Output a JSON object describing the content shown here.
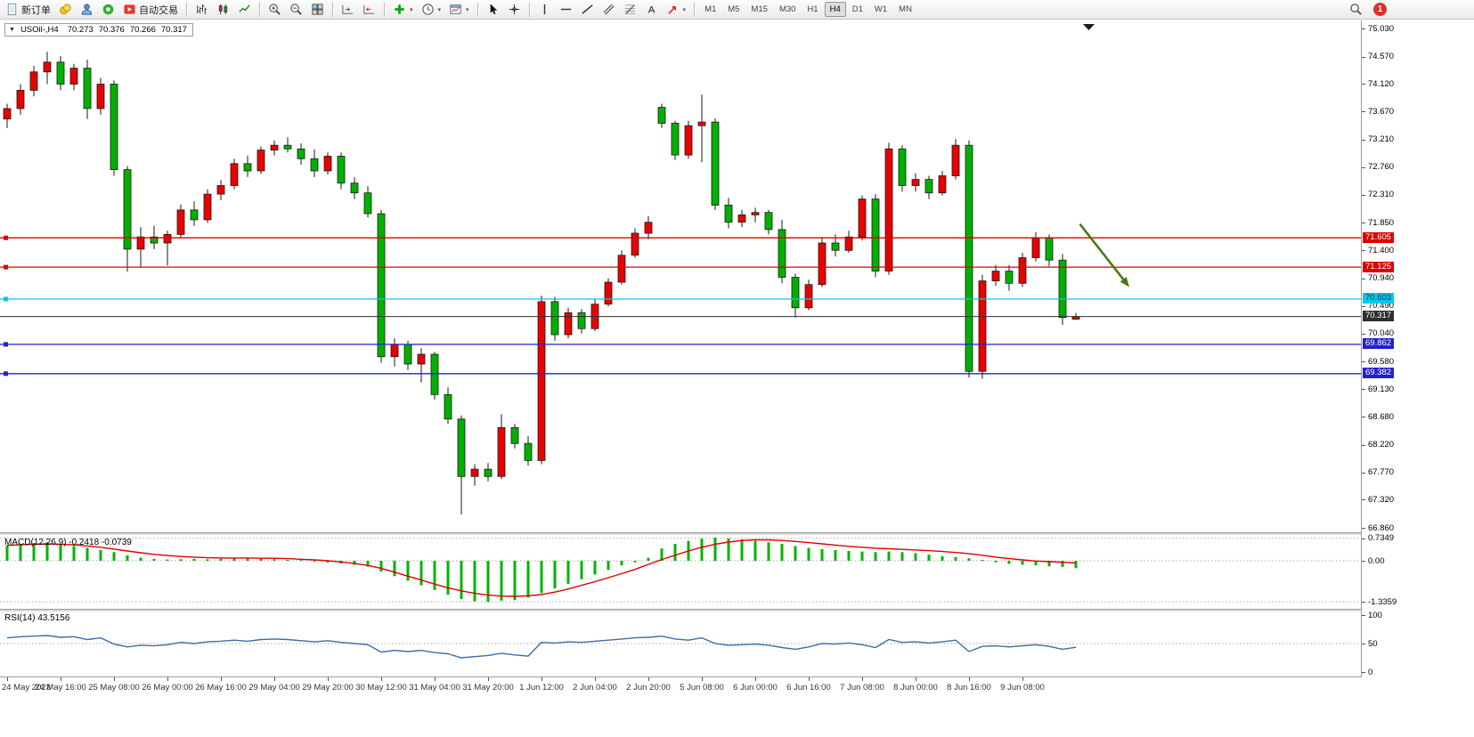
{
  "toolbar": {
    "new_order": "新订单",
    "auto_trading": "自动交易",
    "caret": "▾",
    "text_tool_glyph": "A",
    "timeframes": [
      "M1",
      "M5",
      "M15",
      "M30",
      "H1",
      "H4",
      "D1",
      "W1",
      "MN"
    ],
    "active_timeframe": "H4",
    "notification_count": "1",
    "icons": [
      "new-order",
      "coins",
      "account",
      "community",
      "autotrading",
      "bar-chart-type",
      "candlestick-type",
      "line-chart-type",
      "zoom-in",
      "zoom-out",
      "tile-windows",
      "auto-scroll",
      "chart-shift",
      "add-indicator",
      "periods",
      "templates",
      "cursor",
      "crosshair",
      "vertical-line",
      "horizontal-line",
      "trendline",
      "equidistant-channel",
      "fibonacci-retracement",
      "text-label",
      "arrow-objects",
      "search"
    ]
  },
  "chart": {
    "header": {
      "marker": "▼",
      "symbol_period": "USOil-,H4",
      "open": "70.273",
      "high": "70.376",
      "low": "70.266",
      "close": "70.317"
    },
    "macd_label": "MACD(12,26,9) -0.2418 -0.0739",
    "rsi_label": "RSI(14) 43.5156"
  },
  "chart_data": {
    "type": "candlestick",
    "symbol": "USOil-",
    "period": "H4",
    "ylim": [
      66.86,
      75.03
    ],
    "y_ticks": [
      "75.030",
      "74.570",
      "74.120",
      "73.670",
      "73.210",
      "72.760",
      "72.310",
      "71.850",
      "71.400",
      "70.940",
      "70.490",
      "70.040",
      "69.580",
      "69.130",
      "68.680",
      "68.220",
      "67.770",
      "67.320",
      "66.860"
    ],
    "x_labels": [
      "24 May 2023",
      "24 May 16:00",
      "25 May 08:00",
      "26 May 00:00",
      "26 May 16:00",
      "29 May 04:00",
      "29 May 20:00",
      "30 May 12:00",
      "31 May 04:00",
      "31 May 20:00",
      "1 Jun 12:00",
      "2 Jun 04:00",
      "2 Jun 20:00",
      "5 Jun 08:00",
      "6 Jun 00:00",
      "6 Jun 16:00",
      "7 Jun 08:00",
      "8 Jun 00:00",
      "8 Jun 16:00",
      "9 Jun 08:00"
    ],
    "bars_per_label": 4,
    "bull_color": "#e80202",
    "bear_color": "#02b002",
    "candles": [
      [
        73.55,
        73.8,
        73.4,
        73.72
      ],
      [
        73.72,
        74.12,
        73.62,
        74.02
      ],
      [
        74.02,
        74.42,
        73.92,
        74.32
      ],
      [
        74.32,
        74.65,
        74.12,
        74.48
      ],
      [
        74.48,
        74.58,
        74.02,
        74.12
      ],
      [
        74.12,
        74.45,
        74.02,
        74.38
      ],
      [
        74.38,
        74.52,
        73.55,
        73.72
      ],
      [
        73.72,
        74.22,
        73.62,
        74.12
      ],
      [
        74.12,
        74.18,
        72.62,
        72.72
      ],
      [
        72.72,
        72.78,
        71.05,
        71.42
      ],
      [
        71.42,
        71.78,
        71.12,
        71.62
      ],
      [
        71.62,
        71.8,
        71.42,
        71.52
      ],
      [
        71.52,
        71.72,
        71.15,
        71.66
      ],
      [
        71.66,
        72.15,
        71.6,
        72.06
      ],
      [
        72.06,
        72.2,
        71.8,
        71.9
      ],
      [
        71.9,
        72.4,
        71.85,
        72.32
      ],
      [
        72.32,
        72.55,
        72.22,
        72.46
      ],
      [
        72.46,
        72.9,
        72.4,
        72.82
      ],
      [
        72.82,
        72.95,
        72.6,
        72.7
      ],
      [
        72.7,
        73.1,
        72.65,
        73.04
      ],
      [
        73.04,
        73.2,
        72.95,
        73.12
      ],
      [
        73.12,
        73.25,
        73.0,
        73.06
      ],
      [
        73.06,
        73.15,
        72.8,
        72.9
      ],
      [
        72.9,
        73.05,
        72.6,
        72.7
      ],
      [
        72.7,
        73.0,
        72.64,
        72.94
      ],
      [
        72.94,
        73.0,
        72.4,
        72.5
      ],
      [
        72.5,
        72.6,
        72.24,
        72.34
      ],
      [
        72.34,
        72.45,
        71.94,
        72.0
      ],
      [
        72.0,
        72.06,
        69.56,
        69.66
      ],
      [
        69.66,
        69.96,
        69.5,
        69.86
      ],
      [
        69.86,
        69.92,
        69.44,
        69.54
      ],
      [
        69.54,
        69.8,
        69.24,
        69.7
      ],
      [
        69.7,
        69.74,
        68.96,
        69.04
      ],
      [
        69.04,
        69.16,
        68.56,
        68.64
      ],
      [
        68.64,
        68.7,
        67.08,
        67.7
      ],
      [
        67.7,
        67.9,
        67.55,
        67.82
      ],
      [
        67.82,
        67.92,
        67.62,
        67.7
      ],
      [
        67.7,
        68.72,
        67.66,
        68.5
      ],
      [
        68.5,
        68.56,
        68.16,
        68.24
      ],
      [
        68.24,
        68.36,
        67.88,
        67.96
      ],
      [
        67.96,
        70.66,
        67.9,
        70.56
      ],
      [
        70.56,
        70.64,
        69.92,
        70.02
      ],
      [
        70.02,
        70.46,
        69.96,
        70.38
      ],
      [
        70.38,
        70.44,
        70.04,
        70.12
      ],
      [
        70.12,
        70.6,
        70.08,
        70.52
      ],
      [
        70.52,
        70.94,
        70.48,
        70.88
      ],
      [
        70.88,
        71.4,
        70.84,
        71.32
      ],
      [
        71.32,
        71.76,
        71.28,
        71.68
      ],
      [
        71.68,
        71.96,
        71.58,
        71.86
      ],
      [
        73.74,
        73.8,
        73.4,
        73.48
      ],
      [
        73.48,
        73.52,
        72.88,
        72.96
      ],
      [
        72.96,
        73.52,
        72.9,
        73.44
      ],
      [
        73.44,
        73.95,
        72.84,
        73.5
      ],
      [
        73.5,
        73.56,
        72.06,
        72.14
      ],
      [
        72.14,
        72.26,
        71.76,
        71.86
      ],
      [
        71.86,
        72.06,
        71.78,
        71.98
      ],
      [
        71.98,
        72.1,
        71.86,
        72.02
      ],
      [
        72.02,
        72.06,
        71.66,
        71.74
      ],
      [
        71.74,
        71.9,
        70.86,
        70.96
      ],
      [
        70.96,
        71.02,
        70.3,
        70.46
      ],
      [
        70.46,
        70.92,
        70.42,
        70.84
      ],
      [
        70.84,
        71.62,
        70.8,
        71.52
      ],
      [
        71.52,
        71.66,
        71.3,
        71.4
      ],
      [
        71.4,
        71.72,
        71.36,
        71.62
      ],
      [
        71.62,
        72.3,
        71.56,
        72.24
      ],
      [
        72.24,
        72.32,
        70.96,
        71.06
      ],
      [
        71.06,
        73.16,
        71.0,
        73.06
      ],
      [
        73.06,
        73.12,
        72.36,
        72.46
      ],
      [
        72.46,
        72.66,
        72.36,
        72.56
      ],
      [
        72.56,
        72.62,
        72.24,
        72.34
      ],
      [
        72.34,
        72.7,
        72.3,
        72.62
      ],
      [
        72.62,
        73.22,
        72.56,
        73.12
      ],
      [
        73.12,
        73.2,
        69.32,
        69.42
      ],
      [
        69.42,
        71.0,
        69.3,
        70.9
      ],
      [
        70.9,
        71.16,
        70.82,
        71.06
      ],
      [
        71.06,
        71.16,
        70.74,
        70.86
      ],
      [
        70.86,
        71.36,
        70.8,
        71.28
      ],
      [
        71.28,
        71.7,
        71.22,
        71.6
      ],
      [
        71.6,
        71.66,
        71.14,
        71.24
      ],
      [
        71.24,
        71.34,
        70.18,
        70.3
      ],
      [
        70.273,
        70.376,
        70.266,
        70.317
      ]
    ],
    "levels": [
      {
        "price": 71.605,
        "label": "71.605",
        "color": "#dd0000",
        "dark_text": false,
        "kind": "resistance-line"
      },
      {
        "price": 71.125,
        "label": "71.125",
        "color": "#dd0000",
        "dark_text": false,
        "kind": "resistance-line"
      },
      {
        "price": 70.603,
        "label": "70.603",
        "color": "#00c8ee",
        "dark_text": true,
        "kind": "pivot-line"
      },
      {
        "price": 70.317,
        "label": "70.317",
        "color": "#2f2f2f",
        "dark_text": false,
        "kind": "current-price"
      },
      {
        "price": 69.862,
        "label": "69.862",
        "color": "#2121cf",
        "dark_text": false,
        "kind": "support-line"
      },
      {
        "price": 69.382,
        "label": "69.382",
        "color": "#2121cf",
        "dark_text": false,
        "kind": "support-line"
      }
    ],
    "annotation_arrow": {
      "from_bar": 80.3,
      "from_price": 71.83,
      "to_bar": 84.0,
      "to_price": 70.8,
      "color": "#4a7a14"
    },
    "macd": {
      "name": "MACD(12,26,9)",
      "value": "-0.2418",
      "signal_value": "-0.0739",
      "scale_labels": [
        "0.7349",
        "0.00",
        "-1.3359"
      ],
      "scale_values": [
        0.7349,
        0,
        -1.3359
      ],
      "histogram_color": "#00b400",
      "signal_color": "#e00000",
      "histogram": [
        0.5,
        0.55,
        0.58,
        0.6,
        0.55,
        0.48,
        0.42,
        0.35,
        0.28,
        0.18,
        0.1,
        0.06,
        0.04,
        0.05,
        0.06,
        0.05,
        0.06,
        0.08,
        0.08,
        0.06,
        0.05,
        0.03,
        0.0,
        -0.03,
        -0.06,
        -0.09,
        -0.13,
        -0.19,
        -0.35,
        -0.5,
        -0.65,
        -0.8,
        -0.95,
        -1.1,
        -1.25,
        -1.32,
        -1.34,
        -1.3,
        -1.28,
        -1.2,
        -1.05,
        -0.9,
        -0.75,
        -0.6,
        -0.45,
        -0.3,
        -0.15,
        -0.05,
        0.1,
        0.4,
        0.55,
        0.65,
        0.72,
        0.75,
        0.73,
        0.7,
        0.65,
        0.6,
        0.55,
        0.48,
        0.42,
        0.38,
        0.35,
        0.32,
        0.3,
        0.28,
        0.3,
        0.28,
        0.25,
        0.2,
        0.15,
        0.12,
        0.08,
        0.02,
        -0.05,
        -0.1,
        -0.13,
        -0.15,
        -0.18,
        -0.2,
        -0.2418
      ],
      "signal": [
        0.5,
        0.52,
        0.54,
        0.55,
        0.54,
        0.52,
        0.48,
        0.44,
        0.38,
        0.32,
        0.26,
        0.21,
        0.17,
        0.14,
        0.12,
        0.1,
        0.09,
        0.09,
        0.09,
        0.08,
        0.08,
        0.07,
        0.05,
        0.03,
        0.0,
        -0.04,
        -0.09,
        -0.15,
        -0.25,
        -0.37,
        -0.5,
        -0.63,
        -0.76,
        -0.88,
        -0.98,
        -1.06,
        -1.12,
        -1.15,
        -1.16,
        -1.14,
        -1.1,
        -1.02,
        -0.92,
        -0.8,
        -0.68,
        -0.55,
        -0.42,
        -0.28,
        -0.12,
        0.04,
        0.18,
        0.32,
        0.44,
        0.54,
        0.61,
        0.66,
        0.68,
        0.68,
        0.66,
        0.63,
        0.59,
        0.55,
        0.51,
        0.47,
        0.44,
        0.41,
        0.39,
        0.37,
        0.35,
        0.33,
        0.3,
        0.27,
        0.23,
        0.18,
        0.12,
        0.07,
        0.03,
        -0.01,
        -0.03,
        -0.05,
        -0.0739
      ]
    },
    "rsi": {
      "name": "RSI(14)",
      "value": "43.5156",
      "scale_labels": [
        "100",
        "50",
        "0"
      ],
      "scale_values": [
        100,
        50,
        0
      ],
      "line_color": "#3c6ea5",
      "values": [
        60,
        62,
        63,
        64,
        61,
        62,
        57,
        60,
        49,
        44,
        47,
        46,
        48,
        52,
        50,
        53,
        54,
        56,
        54,
        57,
        58,
        57,
        55,
        53,
        55,
        52,
        50,
        48,
        35,
        38,
        36,
        38,
        34,
        32,
        25,
        27,
        29,
        33,
        30,
        28,
        52,
        51,
        53,
        52,
        54,
        56,
        58,
        60,
        61,
        63,
        58,
        56,
        60,
        50,
        47,
        48,
        49,
        47,
        43,
        40,
        44,
        50,
        49,
        51,
        48,
        43,
        57,
        52,
        53,
        51,
        53,
        56,
        36,
        45,
        46,
        44,
        46,
        48,
        45,
        40,
        43.5
      ]
    }
  }
}
